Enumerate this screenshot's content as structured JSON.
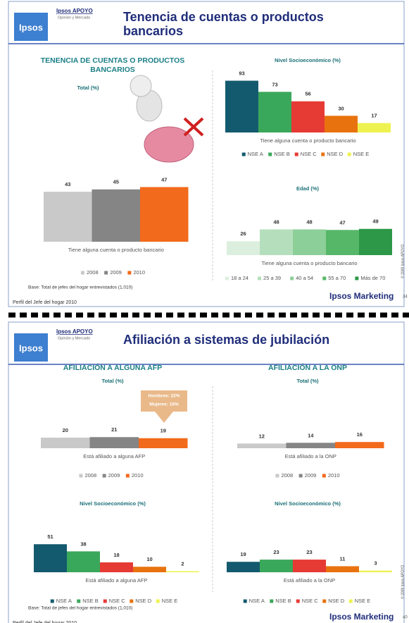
{
  "slides": [
    {
      "header": {
        "logo_top": "Ipsos APOYO",
        "logo_sub": "Opinión y Mercado",
        "logo": "Ipsos",
        "title": "Tenencia de cuentas o productos bancarios"
      },
      "headings": [
        "TENENCIA DE CUENTAS O PRODUCTOS BANCARIOS"
      ],
      "base": "Base: Total de jefes del hogar entrevistados (1,010)",
      "footer": "Perfil del Jefe del hogar 2010",
      "brand": "Ipsos Marketing",
      "copyright": "© 2009 Ipsos APOYO",
      "page": "34"
    },
    {
      "header": {
        "logo_top": "Ipsos APOYO",
        "logo_sub": "Opinión y Mercado",
        "logo": "Ipsos",
        "title": "Afiliación a sistemas de jubilación"
      },
      "headings": [
        "AFILIACIÓN A ALGUNA AFP",
        "AFILIACIÓN A LA ONP"
      ],
      "base": "Base: Total de jefes del hogar entrevistados (1,010)",
      "footer": "Perfil del Jefe del hogar 2010",
      "brand": "Ipsos Marketing",
      "copyright": "© 2009 Ipsos APOYO",
      "page": "40"
    }
  ],
  "chart_data": [
    {
      "type": "bar",
      "title": "Total (%)",
      "categories": [
        "Tiene alguna cuenta o producto bancario"
      ],
      "series": [
        {
          "name": "2008",
          "color": "#c9c9c9",
          "values": [
            43
          ]
        },
        {
          "name": "2009",
          "color": "#858585",
          "values": [
            45
          ]
        },
        {
          "name": "2010",
          "color": "#f26a1b",
          "values": [
            47
          ]
        }
      ]
    },
    {
      "type": "bar",
      "title": "Nivel Socioeconómico (%)",
      "categories": [
        "Tiene alguna cuenta o producto bancario"
      ],
      "series": [
        {
          "name": "NSE A",
          "color": "#145a6e",
          "values": [
            93
          ]
        },
        {
          "name": "NSE B",
          "color": "#3aa85a",
          "values": [
            73
          ]
        },
        {
          "name": "NSE C",
          "color": "#e63a35",
          "values": [
            56
          ]
        },
        {
          "name": "NSE D",
          "color": "#e8730e",
          "values": [
            30
          ]
        },
        {
          "name": "NSE E",
          "color": "#eef251",
          "values": [
            17
          ]
        }
      ]
    },
    {
      "type": "bar",
      "title": "Edad (%)",
      "categories": [
        "Tiene alguna cuenta o producto bancario"
      ],
      "series": [
        {
          "name": "18 a 24",
          "color": "#dcefdf",
          "values": [
            26
          ]
        },
        {
          "name": "25 a 39",
          "color": "#b5dfbc",
          "values": [
            48
          ]
        },
        {
          "name": "40 a 54",
          "color": "#8ccf98",
          "values": [
            48
          ]
        },
        {
          "name": "55 a 70",
          "color": "#57b769",
          "values": [
            47
          ]
        },
        {
          "name": "Más de 70",
          "color": "#2d9847",
          "values": [
            49
          ]
        }
      ]
    },
    {
      "type": "bar",
      "title": "Total (%)",
      "categories": [
        "Está afiliado a alguna AFP"
      ],
      "annotations": [
        "Hombres: 22%",
        "Mujeres: 16%"
      ],
      "series": [
        {
          "name": "2008",
          "color": "#c9c9c9",
          "values": [
            20
          ]
        },
        {
          "name": "2009",
          "color": "#858585",
          "values": [
            21
          ]
        },
        {
          "name": "2010",
          "color": "#f26a1b",
          "values": [
            19
          ]
        }
      ]
    },
    {
      "type": "bar",
      "title": "Total (%)",
      "categories": [
        "Está afiliado a la ONP"
      ],
      "series": [
        {
          "name": "2008",
          "color": "#c9c9c9",
          "values": [
            12
          ]
        },
        {
          "name": "2009",
          "color": "#858585",
          "values": [
            14
          ]
        },
        {
          "name": "2010",
          "color": "#f26a1b",
          "values": [
            16
          ]
        }
      ]
    },
    {
      "type": "bar",
      "title": "Nivel Socioeconómico (%)",
      "categories": [
        "Está afiliado a alguna AFP"
      ],
      "series": [
        {
          "name": "NSE A",
          "color": "#145a6e",
          "values": [
            51
          ]
        },
        {
          "name": "NSE B",
          "color": "#3aa85a",
          "values": [
            38
          ]
        },
        {
          "name": "NSE C",
          "color": "#e63a35",
          "values": [
            18
          ]
        },
        {
          "name": "NSE D",
          "color": "#e8730e",
          "values": [
            10
          ]
        },
        {
          "name": "NSE E",
          "color": "#eef251",
          "values": [
            2
          ]
        }
      ]
    },
    {
      "type": "bar",
      "title": "Nivel Socioeconómico (%)",
      "categories": [
        "Está afiliado a la ONP"
      ],
      "series": [
        {
          "name": "NSE A",
          "color": "#145a6e",
          "values": [
            19
          ]
        },
        {
          "name": "NSE B",
          "color": "#3aa85a",
          "values": [
            23
          ]
        },
        {
          "name": "NSE C",
          "color": "#e63a35",
          "values": [
            23
          ]
        },
        {
          "name": "NSE D",
          "color": "#e8730e",
          "values": [
            11
          ]
        },
        {
          "name": "NSE E",
          "color": "#eef251",
          "values": [
            3
          ]
        }
      ]
    }
  ]
}
